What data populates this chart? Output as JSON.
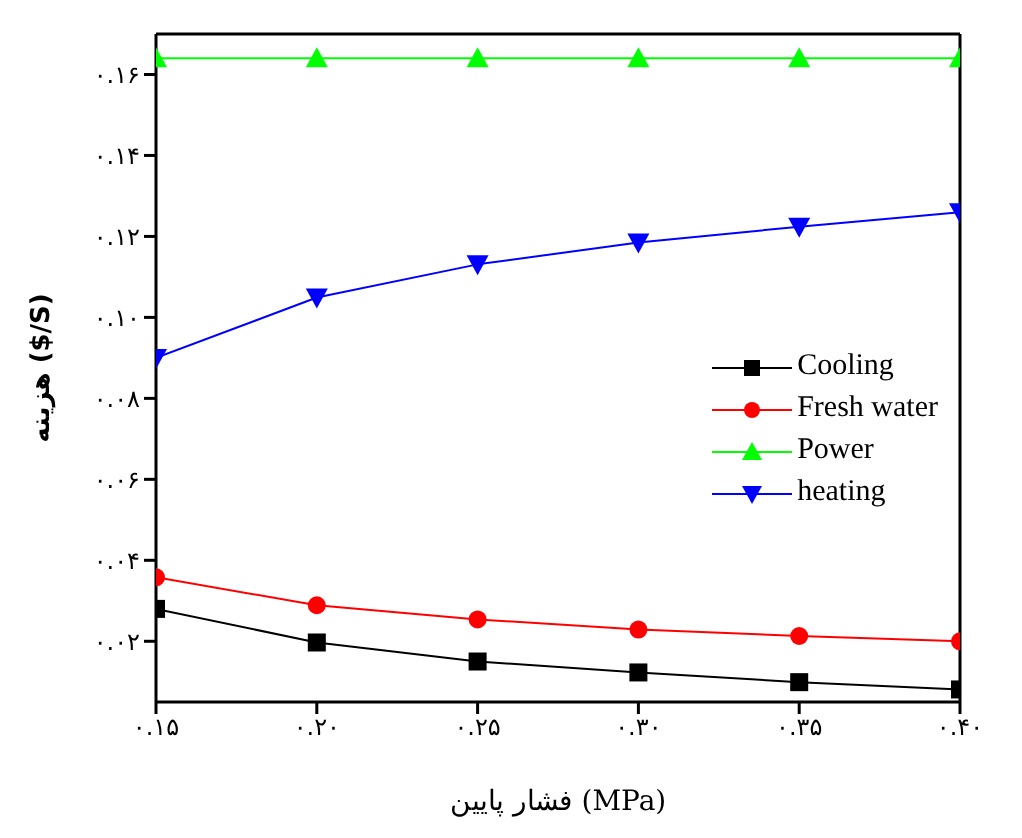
{
  "chart_data": {
    "type": "line",
    "xlabel": "فشار پایین (MPa)",
    "ylabel": "هزینه ($/S)",
    "x": [
      0.15,
      0.2,
      0.25,
      0.3,
      0.35,
      0.4
    ],
    "xlim": [
      0.15,
      0.4
    ],
    "xticks": [
      {
        "value": 0.15,
        "label": "۰.۱۵"
      },
      {
        "value": 0.2,
        "label": "۰.۲۰"
      },
      {
        "value": 0.25,
        "label": "۰.۲۵"
      },
      {
        "value": 0.3,
        "label": "۰.۳۰"
      },
      {
        "value": 0.35,
        "label": "۰.۳۵"
      },
      {
        "value": 0.4,
        "label": "۰.۴۰"
      }
    ],
    "ylim": [
      0.005,
      0.17
    ],
    "yticks": [
      {
        "value": 0.02,
        "label": "۰.۰۲"
      },
      {
        "value": 0.04,
        "label": "۰.۰۴"
      },
      {
        "value": 0.06,
        "label": "۰.۰۶"
      },
      {
        "value": 0.08,
        "label": "۰.۰۸"
      },
      {
        "value": 0.1,
        "label": "۰.۱۰"
      },
      {
        "value": 0.12,
        "label": "۰.۱۲"
      },
      {
        "value": 0.14,
        "label": "۰.۱۴"
      },
      {
        "value": 0.16,
        "label": "۰.۱۶"
      }
    ],
    "grid": false,
    "legend": "right",
    "line_style": "solid",
    "series": [
      {
        "name": "Cooling",
        "color": "#000000",
        "marker": "square",
        "values": [
          0.028,
          0.0197,
          0.015,
          0.0123,
          0.0099,
          0.0081
        ]
      },
      {
        "name": "Fresh water",
        "color": "#ff0000",
        "marker": "circle",
        "values": [
          0.0358,
          0.0289,
          0.0254,
          0.0229,
          0.0213,
          0.02
        ]
      },
      {
        "name": "Power",
        "color": "#00ff00",
        "marker": "triangle",
        "values": [
          0.164,
          0.164,
          0.164,
          0.164,
          0.164,
          0.164
        ]
      },
      {
        "name": "heating",
        "color": "#0000ff",
        "marker": "triangle-down",
        "values": [
          0.09,
          0.1049,
          0.1131,
          0.1185,
          0.1224,
          0.126
        ]
      }
    ]
  }
}
